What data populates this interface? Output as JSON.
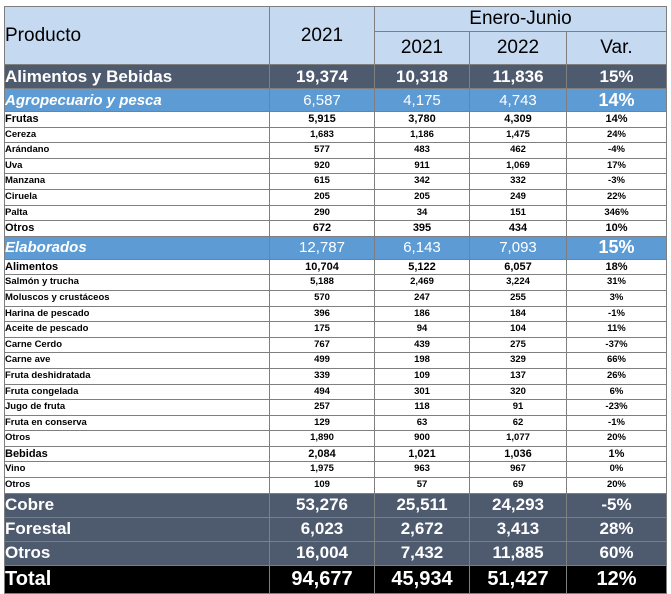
{
  "header": {
    "producto": "Producto",
    "year_2021": "2021",
    "period": "Enero-Junio",
    "p_2021": "2021",
    "p_2022": "2022",
    "var": "Var."
  },
  "rows": [
    {
      "label": "Alimentos y Bebidas",
      "v2021": "19,374",
      "p2021": "10,318",
      "p2022": "11,836",
      "var": "15%"
    },
    {
      "label": "Agropecuario y pesca",
      "v2021": "6,587",
      "p2021": "4,175",
      "p2022": "4,743",
      "var": "14%"
    },
    {
      "label": "Frutas",
      "v2021": "5,915",
      "p2021": "3,780",
      "p2022": "4,309",
      "var": "14%"
    },
    {
      "label": "Cereza",
      "v2021": "1,683",
      "p2021": "1,186",
      "p2022": "1,475",
      "var": "24%"
    },
    {
      "label": "Arándano",
      "v2021": "577",
      "p2021": "483",
      "p2022": "462",
      "var": "-4%"
    },
    {
      "label": "Uva",
      "v2021": "920",
      "p2021": "911",
      "p2022": "1,069",
      "var": "17%"
    },
    {
      "label": "Manzana",
      "v2021": "615",
      "p2021": "342",
      "p2022": "332",
      "var": "-3%"
    },
    {
      "label": "Ciruela",
      "v2021": "205",
      "p2021": "205",
      "p2022": "249",
      "var": "22%"
    },
    {
      "label": "Palta",
      "v2021": "290",
      "p2021": "34",
      "p2022": "151",
      "var": "346%"
    },
    {
      "label": "Otros",
      "v2021": "672",
      "p2021": "395",
      "p2022": "434",
      "var": "10%"
    },
    {
      "label": "Elaborados",
      "v2021": "12,787",
      "p2021": "6,143",
      "p2022": "7,093",
      "var": "15%"
    },
    {
      "label": "Alimentos",
      "v2021": "10,704",
      "p2021": "5,122",
      "p2022": "6,057",
      "var": "18%"
    },
    {
      "label": "Salmón y trucha",
      "v2021": "5,188",
      "p2021": "2,469",
      "p2022": "3,224",
      "var": "31%"
    },
    {
      "label": "Moluscos y crustáceos",
      "v2021": "570",
      "p2021": "247",
      "p2022": "255",
      "var": "3%"
    },
    {
      "label": "Harina de pescado",
      "v2021": "396",
      "p2021": "186",
      "p2022": "184",
      "var": "-1%"
    },
    {
      "label": "Aceite de pescado",
      "v2021": "175",
      "p2021": "94",
      "p2022": "104",
      "var": "11%"
    },
    {
      "label": "Carne Cerdo",
      "v2021": "767",
      "p2021": "439",
      "p2022": "275",
      "var": "-37%"
    },
    {
      "label": "Carne ave",
      "v2021": "499",
      "p2021": "198",
      "p2022": "329",
      "var": "66%"
    },
    {
      "label": "Fruta deshidratada",
      "v2021": "339",
      "p2021": "109",
      "p2022": "137",
      "var": "26%"
    },
    {
      "label": "Fruta congelada",
      "v2021": "494",
      "p2021": "301",
      "p2022": "320",
      "var": "6%"
    },
    {
      "label": "Jugo de fruta",
      "v2021": "257",
      "p2021": "118",
      "p2022": "91",
      "var": "-23%"
    },
    {
      "label": "Fruta en conserva",
      "v2021": "129",
      "p2021": "63",
      "p2022": "62",
      "var": "-1%"
    },
    {
      "label": "Otros",
      "v2021": "1,890",
      "p2021": "900",
      "p2022": "1,077",
      "var": "20%"
    },
    {
      "label": "Bebidas",
      "v2021": "2,084",
      "p2021": "1,021",
      "p2022": "1,036",
      "var": "1%"
    },
    {
      "label": "Vino",
      "v2021": "1,975",
      "p2021": "963",
      "p2022": "967",
      "var": "0%"
    },
    {
      "label": "Otros",
      "v2021": "109",
      "p2021": "57",
      "p2022": "69",
      "var": "20%"
    },
    {
      "label": "Cobre",
      "v2021": "53,276",
      "p2021": "25,511",
      "p2022": "24,293",
      "var": "-5%"
    },
    {
      "label": "Forestal",
      "v2021": "6,023",
      "p2021": "2,672",
      "p2022": "3,413",
      "var": "28%"
    },
    {
      "label": "Otros",
      "v2021": "16,004",
      "p2021": "7,432",
      "p2022": "11,885",
      "var": "60%"
    },
    {
      "label": "Total",
      "v2021": "94,677",
      "p2021": "45,934",
      "p2022": "51,427",
      "var": "12%"
    }
  ]
}
